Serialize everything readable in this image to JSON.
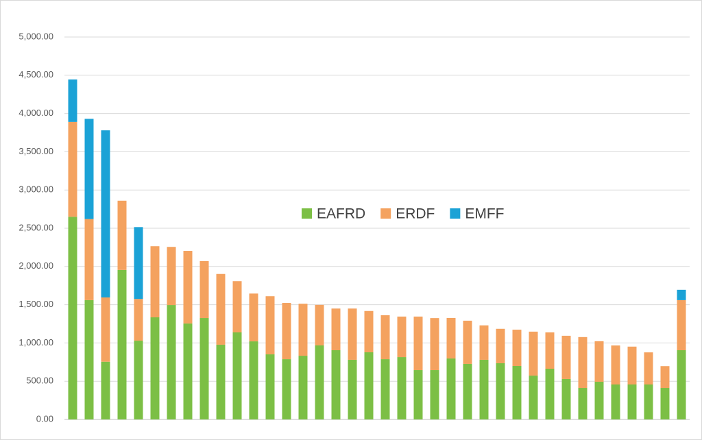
{
  "chart_data": {
    "type": "stacked_bar",
    "categories": [
      null,
      null,
      null,
      null,
      null,
      null,
      null,
      null,
      null,
      null,
      null,
      null,
      null,
      null,
      null,
      null,
      null,
      null,
      null,
      null,
      null,
      null,
      null,
      null,
      null,
      null,
      null,
      null,
      null,
      null,
      null,
      null,
      null,
      null,
      null,
      null,
      null,
      null
    ],
    "series": [
      {
        "name": "EAFRD",
        "color": "#7cbf45",
        "values": [
          2650,
          1560,
          755,
          1955,
          1030,
          1335,
          1496,
          1254,
          1326,
          977,
          1138,
          1021,
          851,
          788,
          833,
          968,
          905,
          780,
          878,
          788,
          815,
          645,
          645,
          797,
          726,
          780,
          735,
          699,
          573,
          663,
          529,
          412,
          493,
          457,
          457,
          457,
          412,
          905
        ]
      },
      {
        "name": "ERDF",
        "color": "#f4a25f",
        "values": [
          1240,
          1060,
          840,
          905,
          545,
          930,
          760,
          950,
          745,
          925,
          670,
          625,
          760,
          735,
          680,
          530,
          545,
          670,
          540,
          575,
          530,
          700,
          680,
          530,
          565,
          450,
          450,
          475,
          575,
          475,
          565,
          665,
          530,
          510,
          495,
          420,
          285,
          655
        ]
      },
      {
        "name": "EMFF",
        "color": "#1ba2d6",
        "values": [
          555,
          1310,
          2185,
          0,
          940,
          0,
          0,
          0,
          0,
          0,
          0,
          0,
          0,
          0,
          0,
          0,
          0,
          0,
          0,
          0,
          0,
          0,
          0,
          0,
          0,
          0,
          0,
          0,
          0,
          0,
          0,
          0,
          0,
          0,
          0,
          0,
          0,
          135
        ]
      }
    ],
    "ylim": [
      0,
      5000
    ],
    "yticks": [
      {
        "value": 0,
        "label": "0.00"
      },
      {
        "value": 500,
        "label": "500.00"
      },
      {
        "value": 1000,
        "label": "1,000.00"
      },
      {
        "value": 1500,
        "label": "1,500.00"
      },
      {
        "value": 2000,
        "label": "2,000.00"
      },
      {
        "value": 2500,
        "label": "2,500.00"
      },
      {
        "value": 3000,
        "label": "3,000.00"
      },
      {
        "value": 3500,
        "label": "3,500.00"
      },
      {
        "value": 4000,
        "label": "4,000.00"
      },
      {
        "value": 4500,
        "label": "4,500.00"
      },
      {
        "value": 5000,
        "label": "5,000.00"
      }
    ],
    "grid": true,
    "legend": "center"
  }
}
